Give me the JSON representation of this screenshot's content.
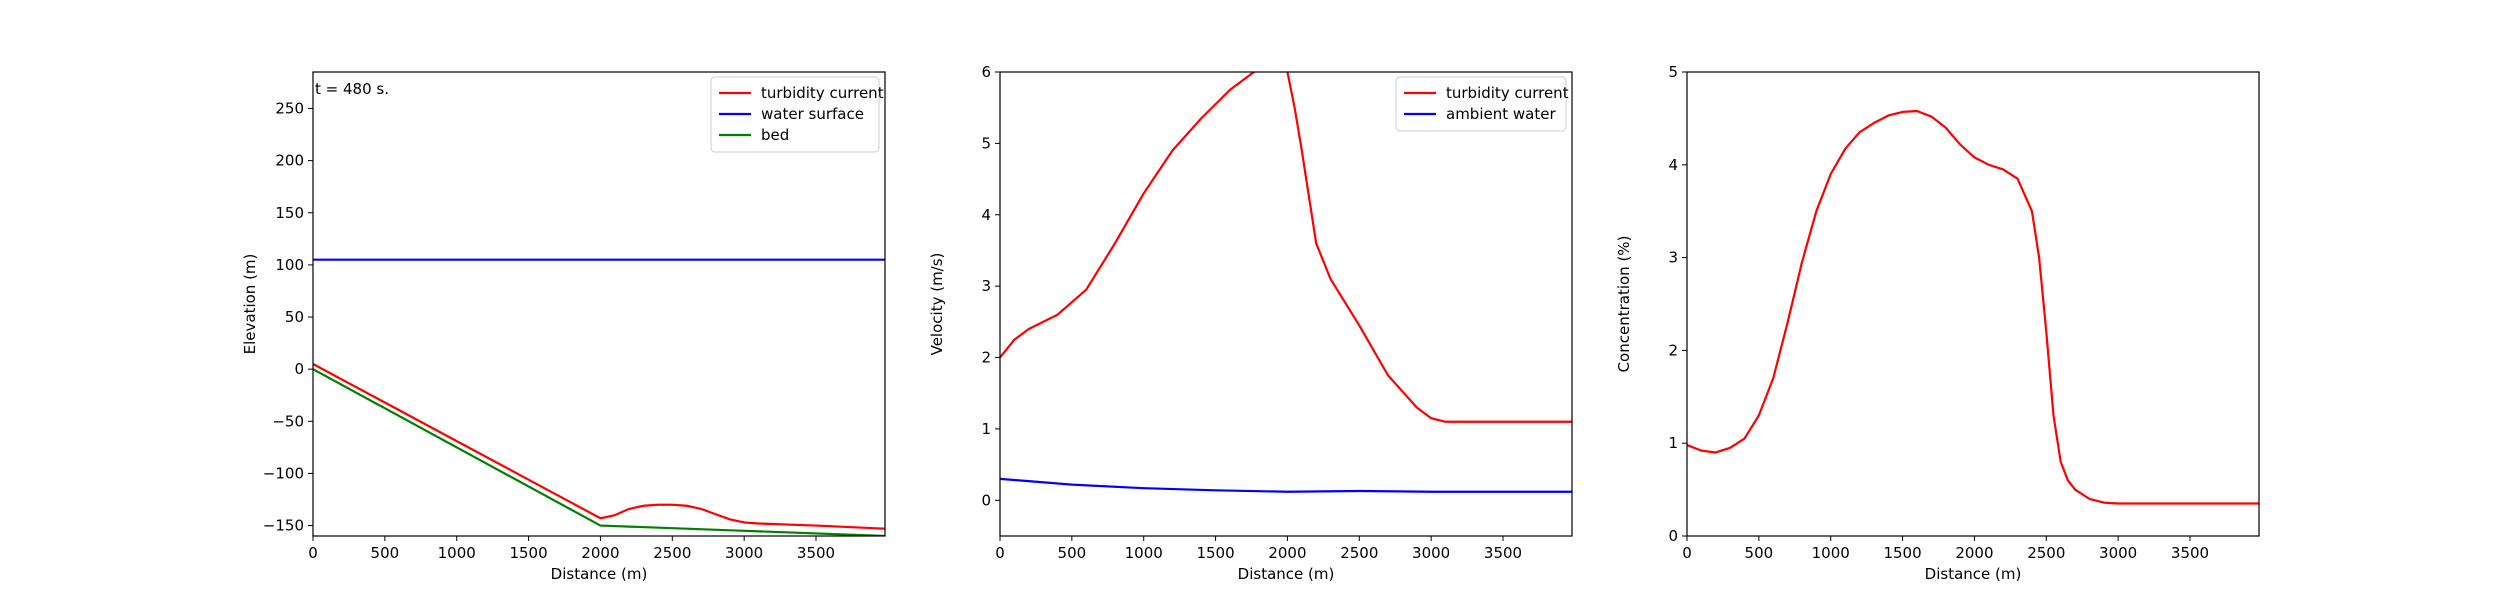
{
  "chart_data": [
    {
      "type": "line",
      "title": "",
      "xlabel": "Distance (m)",
      "ylabel": "Elevation (m)",
      "xlim": [
        0,
        3980
      ],
      "ylim": [
        -160,
        285
      ],
      "xticks": [
        0,
        500,
        1000,
        1500,
        2000,
        2500,
        3000,
        3500
      ],
      "yticks": [
        -150,
        -100,
        -50,
        0,
        50,
        100,
        150,
        200,
        250
      ],
      "grid": false,
      "legend_position": "top-right",
      "annotation": "t = 480 s.",
      "series": [
        {
          "name": "turbidity current",
          "color": "#ff0000",
          "x": [
            0,
            500,
            1000,
            1500,
            2000,
            2100,
            2200,
            2300,
            2400,
            2500,
            2600,
            2700,
            2800,
            2900,
            3000,
            3100,
            3500,
            3980
          ],
          "y": [
            5,
            -32,
            -69,
            -106,
            -143,
            -140,
            -134,
            -131,
            -130,
            -130,
            -131,
            -134,
            -139,
            -144,
            -147,
            -148,
            -150,
            -153
          ]
        },
        {
          "name": "water surface",
          "color": "#0000ff",
          "x": [
            0,
            3980
          ],
          "y": [
            105,
            105
          ]
        },
        {
          "name": "bed",
          "color": "#008000",
          "x": [
            0,
            2000,
            3000,
            3980
          ],
          "y": [
            0,
            -150,
            -155,
            -160
          ]
        }
      ]
    },
    {
      "type": "line",
      "title": "",
      "xlabel": "Distance (m)",
      "ylabel": "Velocity (m/s)",
      "xlim": [
        0,
        3980
      ],
      "ylim": [
        -0.5,
        6
      ],
      "xticks": [
        0,
        500,
        1000,
        1500,
        2000,
        2500,
        3000,
        3500
      ],
      "yticks": [
        0,
        1,
        2,
        3,
        4,
        5,
        6
      ],
      "grid": false,
      "legend_position": "top-right",
      "series": [
        {
          "name": "turbidity current",
          "color": "#ff0000",
          "x": [
            0,
            100,
            200,
            400,
            600,
            800,
            1000,
            1200,
            1400,
            1600,
            1800,
            1900,
            2000,
            2050,
            2100,
            2200,
            2300,
            2500,
            2700,
            2900,
            3000,
            3100,
            3200,
            3500,
            3980
          ],
          "y": [
            2.0,
            2.25,
            2.4,
            2.6,
            2.95,
            3.6,
            4.3,
            4.9,
            5.35,
            5.75,
            6.05,
            6.2,
            6.0,
            5.5,
            4.9,
            3.6,
            3.1,
            2.45,
            1.75,
            1.3,
            1.15,
            1.1,
            1.1,
            1.1,
            1.1
          ]
        },
        {
          "name": "ambient water",
          "color": "#0000ff",
          "x": [
            0,
            500,
            1000,
            1500,
            2000,
            2500,
            3000,
            3500,
            3980
          ],
          "y": [
            0.3,
            0.22,
            0.17,
            0.14,
            0.12,
            0.13,
            0.12,
            0.12,
            0.12
          ]
        }
      ]
    },
    {
      "type": "line",
      "title": "",
      "xlabel": "Distance (m)",
      "ylabel": "Concentration (%)",
      "xlim": [
        0,
        3980
      ],
      "ylim": [
        0,
        5
      ],
      "xticks": [
        0,
        500,
        1000,
        1500,
        2000,
        2500,
        3000,
        3500
      ],
      "yticks": [
        0,
        1,
        2,
        3,
        4,
        5
      ],
      "grid": false,
      "legend_position": "none",
      "series": [
        {
          "name": "",
          "color": "#ff0000",
          "x": [
            0,
            50,
            100,
            200,
            300,
            400,
            500,
            600,
            700,
            800,
            900,
            1000,
            1100,
            1200,
            1300,
            1400,
            1500,
            1600,
            1700,
            1800,
            1900,
            2000,
            2100,
            2200,
            2300,
            2400,
            2450,
            2500,
            2550,
            2600,
            2650,
            2700,
            2800,
            2900,
            3000,
            3500,
            3980
          ],
          "y": [
            0.98,
            0.95,
            0.92,
            0.9,
            0.95,
            1.05,
            1.3,
            1.7,
            2.3,
            2.95,
            3.5,
            3.9,
            4.17,
            4.35,
            4.45,
            4.53,
            4.57,
            4.58,
            4.52,
            4.4,
            4.22,
            4.08,
            4.0,
            3.95,
            3.85,
            3.5,
            3.0,
            2.2,
            1.3,
            0.8,
            0.6,
            0.5,
            0.4,
            0.36,
            0.35,
            0.35,
            0.35
          ]
        }
      ]
    }
  ]
}
